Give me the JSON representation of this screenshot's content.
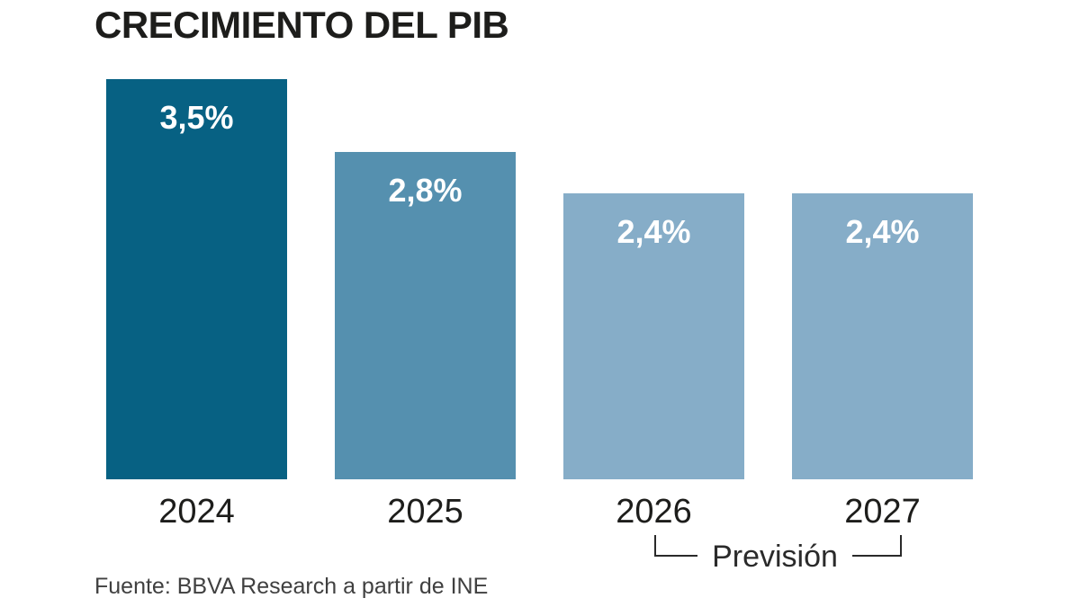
{
  "title": "CRECIMIENTO DEL PIB",
  "source": "Fuente: BBVA Research a partir de INE",
  "forecast": {
    "label": "Previsión",
    "applies_to": [
      "2026",
      "2027"
    ]
  },
  "colors": {
    "bar_2024": "#076183",
    "bar_2025": "#5590af",
    "bar_2026": "#86adc8",
    "bar_2027": "#86adc8",
    "title_text": "#1d1d1b",
    "bar_value_text": "#ffffff",
    "axis_text": "#1d1d1b",
    "source_text": "#404040",
    "background": "#ffffff"
  },
  "chart_data": {
    "type": "bar",
    "title": "CRECIMIENTO DEL PIB",
    "categories": [
      "2024",
      "2025",
      "2026",
      "2027"
    ],
    "values": [
      3.5,
      2.8,
      2.4,
      2.4
    ],
    "value_labels": [
      "3,5%",
      "2,8%",
      "2,4%",
      "2,4%"
    ],
    "bar_colors": [
      "#076183",
      "#5590af",
      "#86adc8",
      "#86adc8"
    ],
    "unit": "%",
    "xlabel": "",
    "ylabel": "",
    "ylim": [
      0,
      3.5
    ],
    "grid": false,
    "legend": false,
    "annotations": [
      {
        "text": "Previsión",
        "spans_categories": [
          "2026",
          "2027"
        ],
        "position": "below-x-axis"
      }
    ],
    "source": "Fuente: BBVA Research a partir de INE"
  }
}
